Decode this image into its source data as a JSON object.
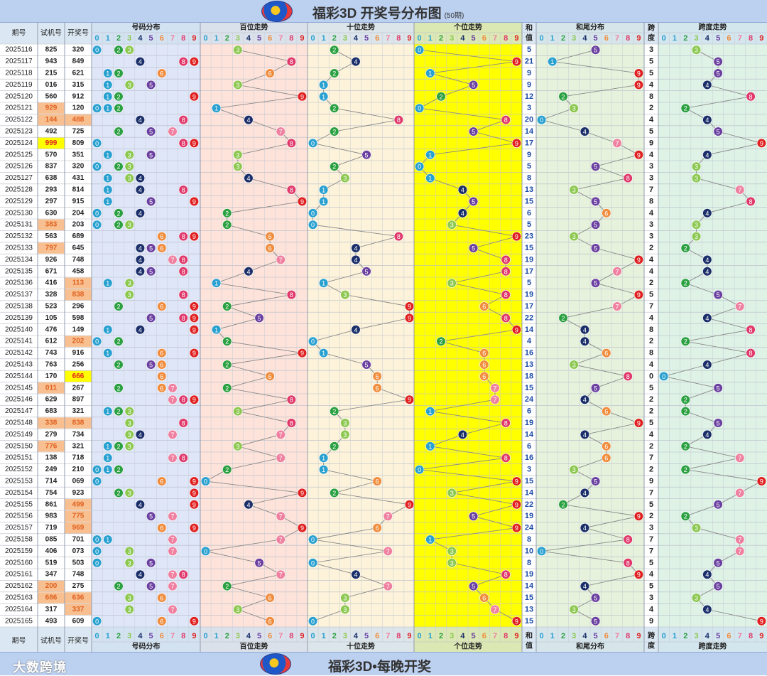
{
  "header": {
    "title": "福彩3D 开奖号分布图",
    "subtitle": "(50期)"
  },
  "footer": {
    "slogan": "福彩3D•每晚开奖",
    "brand": "大数跨境"
  },
  "columns": {
    "period": "期号",
    "test": "试机号",
    "draw": "开奖号",
    "dist": "号码分布",
    "hundreds": "百位走势",
    "tens": "十位走势",
    "units": "个位走势",
    "sum_top": "和",
    "sum_bottom": "值",
    "tail": "和尾分布",
    "span_top": "跨",
    "span_bottom": "度",
    "span_trend": "跨度走势"
  },
  "digits": [
    "0",
    "1",
    "2",
    "3",
    "4",
    "5",
    "6",
    "7",
    "8",
    "9"
  ],
  "colors": {
    "digits": [
      "#28a0d0",
      "#28a0d0",
      "#2aa040",
      "#8cc850",
      "#1a2e6a",
      "#6a3fa0",
      "#f08c3c",
      "#f080a0",
      "#e0386a",
      "#e02020"
    ],
    "dist_bg": "#dfe6f7",
    "hundreds_bg": "#fde3da",
    "tens_bg": "#fdf3da",
    "units_bg": "#ffff00",
    "tail_bg": "#e6f2dc",
    "span_bg": "#def2e6",
    "header_bg": "#cfe0ef",
    "test_highlight": "#f8c090",
    "draw_yellow": "#ffff00"
  },
  "chart_data": {
    "type": "table",
    "title": "福彩3D 开奖号分布图",
    "rows": [
      {
        "period": "2025116",
        "test": "825",
        "draw": "320",
        "sum": "5",
        "span": "3"
      },
      {
        "period": "2025117",
        "test": "943",
        "draw": "849",
        "sum": "21",
        "span": "5"
      },
      {
        "period": "2025118",
        "test": "215",
        "draw": "621",
        "sum": "9",
        "span": "5"
      },
      {
        "period": "2025119",
        "test": "016",
        "draw": "315",
        "sum": "9",
        "span": "4"
      },
      {
        "period": "2025120",
        "test": "560",
        "draw": "912",
        "sum": "12",
        "span": "8"
      },
      {
        "period": "2025121",
        "test": "929",
        "draw": "120",
        "sum": "3",
        "span": "2",
        "test_hl": true
      },
      {
        "period": "2025122",
        "test": "144",
        "draw": "488",
        "sum": "20",
        "span": "4",
        "test_hl": true,
        "draw_hl": true
      },
      {
        "period": "2025123",
        "test": "492",
        "draw": "725",
        "sum": "14",
        "span": "5"
      },
      {
        "period": "2025124",
        "test": "999",
        "draw": "809",
        "sum": "17",
        "span": "9",
        "test_y": true
      },
      {
        "period": "2025125",
        "test": "570",
        "draw": "351",
        "sum": "9",
        "span": "4"
      },
      {
        "period": "2025126",
        "test": "837",
        "draw": "320",
        "sum": "5",
        "span": "3"
      },
      {
        "period": "2025127",
        "test": "638",
        "draw": "431",
        "sum": "8",
        "span": "3"
      },
      {
        "period": "2025128",
        "test": "293",
        "draw": "814",
        "sum": "13",
        "span": "7"
      },
      {
        "period": "2025129",
        "test": "297",
        "draw": "915",
        "sum": "15",
        "span": "8"
      },
      {
        "period": "2025130",
        "test": "630",
        "draw": "204",
        "sum": "6",
        "span": "4"
      },
      {
        "period": "2025131",
        "test": "383",
        "draw": "203",
        "sum": "5",
        "span": "3",
        "test_hl": true
      },
      {
        "period": "2025132",
        "test": "563",
        "draw": "689",
        "sum": "23",
        "span": "3"
      },
      {
        "period": "2025133",
        "test": "797",
        "draw": "645",
        "sum": "15",
        "span": "2",
        "test_hl": true
      },
      {
        "period": "2025134",
        "test": "926",
        "draw": "748",
        "sum": "19",
        "span": "4"
      },
      {
        "period": "2025135",
        "test": "671",
        "draw": "458",
        "sum": "17",
        "span": "4"
      },
      {
        "period": "2025136",
        "test": "416",
        "draw": "113",
        "sum": "5",
        "span": "2",
        "draw_hl": true
      },
      {
        "period": "2025137",
        "test": "328",
        "draw": "838",
        "sum": "19",
        "span": "5",
        "draw_hl": true
      },
      {
        "period": "2025138",
        "test": "523",
        "draw": "296",
        "sum": "17",
        "span": "7"
      },
      {
        "period": "2025139",
        "test": "105",
        "draw": "598",
        "sum": "22",
        "span": "4"
      },
      {
        "period": "2025140",
        "test": "476",
        "draw": "149",
        "sum": "14",
        "span": "8"
      },
      {
        "period": "2025141",
        "test": "612",
        "draw": "202",
        "sum": "4",
        "span": "2",
        "draw_hl": true
      },
      {
        "period": "2025142",
        "test": "743",
        "draw": "916",
        "sum": "16",
        "span": "8"
      },
      {
        "period": "2025143",
        "test": "763",
        "draw": "256",
        "sum": "13",
        "span": "4"
      },
      {
        "period": "2025144",
        "test": "170",
        "draw": "666",
        "sum": "18",
        "span": "0",
        "draw_y": true
      },
      {
        "period": "2025145",
        "test": "011",
        "draw": "267",
        "sum": "15",
        "span": "5",
        "test_hl": true
      },
      {
        "period": "2025146",
        "test": "629",
        "draw": "897",
        "sum": "24",
        "span": "2"
      },
      {
        "period": "2025147",
        "test": "683",
        "draw": "321",
        "sum": "6",
        "span": "2"
      },
      {
        "period": "2025148",
        "test": "338",
        "draw": "838",
        "sum": "19",
        "span": "5",
        "test_hl": true,
        "draw_hl": true
      },
      {
        "period": "2025149",
        "test": "279",
        "draw": "734",
        "sum": "14",
        "span": "4"
      },
      {
        "period": "2025150",
        "test": "776",
        "draw": "321",
        "sum": "6",
        "span": "2",
        "test_hl": true
      },
      {
        "period": "2025151",
        "test": "138",
        "draw": "718",
        "sum": "16",
        "span": "7"
      },
      {
        "period": "2025152",
        "test": "249",
        "draw": "210",
        "sum": "3",
        "span": "2"
      },
      {
        "period": "2025153",
        "test": "714",
        "draw": "069",
        "sum": "15",
        "span": "9"
      },
      {
        "period": "2025154",
        "test": "754",
        "draw": "923",
        "sum": "14",
        "span": "7"
      },
      {
        "period": "2025155",
        "test": "861",
        "draw": "499",
        "sum": "22",
        "span": "5",
        "draw_hl": true
      },
      {
        "period": "2025156",
        "test": "983",
        "draw": "775",
        "sum": "19",
        "span": "2",
        "draw_hl": true
      },
      {
        "period": "2025157",
        "test": "719",
        "draw": "969",
        "sum": "24",
        "span": "3",
        "draw_hl": true
      },
      {
        "period": "2025158",
        "test": "085",
        "draw": "701",
        "sum": "8",
        "span": "7"
      },
      {
        "period": "2025159",
        "test": "406",
        "draw": "073",
        "sum": "10",
        "span": "7"
      },
      {
        "period": "2025160",
        "test": "519",
        "draw": "503",
        "sum": "8",
        "span": "5"
      },
      {
        "period": "2025161",
        "test": "347",
        "draw": "748",
        "sum": "19",
        "span": "4"
      },
      {
        "period": "2025162",
        "test": "200",
        "draw": "275",
        "sum": "14",
        "span": "5",
        "test_hl": true
      },
      {
        "period": "2025163",
        "test": "686",
        "draw": "636",
        "sum": "15",
        "span": "3",
        "test_hl": true,
        "draw_hl": true
      },
      {
        "period": "2025164",
        "test": "317",
        "draw": "337",
        "sum": "13",
        "span": "4",
        "draw_hl": true
      },
      {
        "period": "2025165",
        "test": "493",
        "draw": "609",
        "sum": "15",
        "span": "9"
      }
    ]
  }
}
